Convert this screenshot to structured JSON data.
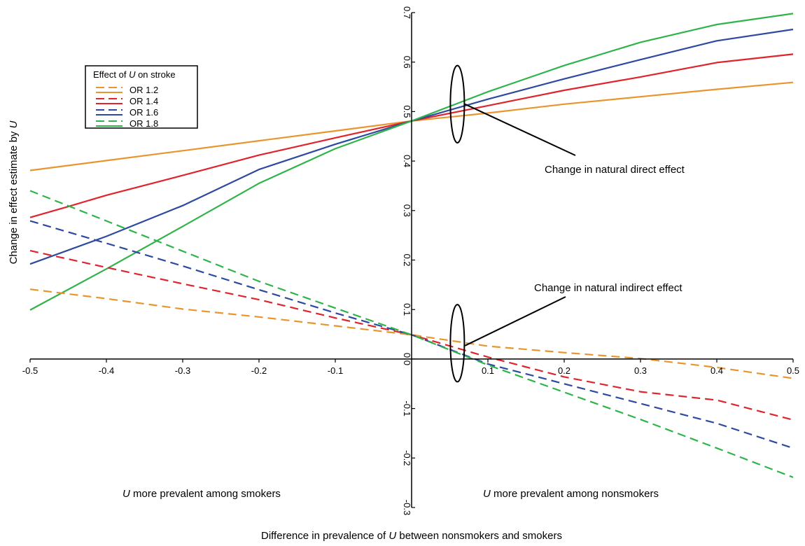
{
  "chart_data": {
    "type": "line",
    "xlabel": {
      "pre": "Difference in prevalence of ",
      "var": "U",
      "post": " between nonsmokers and smokers"
    },
    "ylabel": {
      "pre": "Change in effect estimate by ",
      "var": "U"
    },
    "xlim": [
      -0.5,
      0.5
    ],
    "ylim": [
      -0.3,
      0.7
    ],
    "x_ticks": [
      {
        "value": -0.5,
        "label": "-0.5"
      },
      {
        "value": -0.4,
        "label": "-0.4"
      },
      {
        "value": -0.3,
        "label": "-0.3"
      },
      {
        "value": -0.2,
        "label": "-0.2"
      },
      {
        "value": -0.1,
        "label": "-0.1"
      },
      {
        "value": 0.1,
        "label": "0.1"
      },
      {
        "value": 0.2,
        "label": "0.2"
      },
      {
        "value": 0.3,
        "label": "0.3"
      },
      {
        "value": 0.4,
        "label": "0.4"
      },
      {
        "value": 0.5,
        "label": "0.5"
      }
    ],
    "y_ticks": [
      {
        "value": -0.3,
        "label": "-0.3"
      },
      {
        "value": -0.2,
        "label": "-0.2"
      },
      {
        "value": -0.1,
        "label": "-0.1"
      },
      {
        "value": 0.0,
        "label": "0.0"
      },
      {
        "value": 0.1,
        "label": "0.1"
      },
      {
        "value": 0.2,
        "label": "0.2"
      },
      {
        "value": 0.3,
        "label": "0.3"
      },
      {
        "value": 0.4,
        "label": "0.4"
      },
      {
        "value": 0.5,
        "label": "0.5"
      },
      {
        "value": 0.6,
        "label": "0.6"
      },
      {
        "value": 0.7,
        "label": "0.7"
      }
    ],
    "grid": false,
    "legend": {
      "position": "top-left",
      "title_pre": "Effect of ",
      "title_var": "U",
      "title_post": " on stroke",
      "entries": [
        {
          "label": "OR 1.2",
          "color": "#e8952e"
        },
        {
          "label": "OR 1.4",
          "color": "#e0242c"
        },
        {
          "label": "OR 1.6",
          "color": "#2e4aa0"
        },
        {
          "label": "OR 1.8",
          "color": "#2fb44a"
        }
      ]
    },
    "series": [
      {
        "group": "natural-direct",
        "or": "OR 1.2",
        "color": "#e8952e",
        "style": "solid",
        "x": [
          -0.5,
          -0.4,
          -0.3,
          -0.2,
          -0.1,
          0,
          0.1,
          0.2,
          0.3,
          0.4,
          0.5
        ],
        "y": [
          0.381,
          0.401,
          0.421,
          0.441,
          0.461,
          0.481,
          0.497,
          0.515,
          0.53,
          0.545,
          0.559
        ]
      },
      {
        "group": "natural-direct",
        "or": "OR 1.4",
        "color": "#e0242c",
        "style": "solid",
        "x": [
          -0.5,
          -0.45,
          -0.4,
          -0.3,
          -0.2,
          -0.1,
          0,
          0.1,
          0.2,
          0.3,
          0.4,
          0.5
        ],
        "y": [
          0.286,
          0.308,
          0.331,
          0.371,
          0.412,
          0.447,
          0.481,
          0.512,
          0.543,
          0.57,
          0.599,
          0.616
        ]
      },
      {
        "group": "natural-direct",
        "or": "OR 1.6",
        "color": "#2e4aa0",
        "style": "solid",
        "x": [
          -0.5,
          -0.4,
          -0.3,
          -0.2,
          -0.1,
          0,
          0.1,
          0.2,
          0.3,
          0.4,
          0.5
        ],
        "y": [
          0.192,
          0.248,
          0.31,
          0.383,
          0.434,
          0.481,
          0.525,
          0.566,
          0.605,
          0.643,
          0.666
        ]
      },
      {
        "group": "natural-direct",
        "or": "OR 1.8",
        "color": "#2fb44a",
        "style": "solid",
        "x": [
          -0.5,
          -0.4,
          -0.3,
          -0.2,
          -0.1,
          0,
          0.1,
          0.2,
          0.3,
          0.4,
          0.5
        ],
        "y": [
          0.099,
          0.182,
          0.268,
          0.355,
          0.425,
          0.481,
          0.54,
          0.593,
          0.64,
          0.676,
          0.698
        ]
      },
      {
        "group": "natural-indirect",
        "or": "OR 1.2",
        "color": "#e8952e",
        "style": "dashed",
        "x": [
          -0.5,
          -0.4,
          -0.3,
          -0.2,
          -0.1,
          0,
          0.1,
          0.2,
          0.3,
          0.4,
          0.5
        ],
        "y": [
          0.141,
          0.122,
          0.101,
          0.085,
          0.067,
          0.049,
          0.026,
          0.013,
          0.001,
          -0.017,
          -0.039
        ]
      },
      {
        "group": "natural-indirect",
        "or": "OR 1.4",
        "color": "#e0242c",
        "style": "dashed",
        "x": [
          -0.5,
          -0.4,
          -0.3,
          -0.2,
          -0.1,
          0,
          0.1,
          0.2,
          0.3,
          0.4,
          0.5
        ],
        "y": [
          0.219,
          0.185,
          0.152,
          0.12,
          0.083,
          0.049,
          0.004,
          -0.036,
          -0.066,
          -0.083,
          -0.123
        ]
      },
      {
        "group": "natural-indirect",
        "or": "OR 1.6",
        "color": "#2e4aa0",
        "style": "dashed",
        "x": [
          -0.5,
          -0.4,
          -0.3,
          -0.2,
          -0.1,
          0,
          0.1,
          0.2,
          0.3,
          0.4,
          0.5
        ],
        "y": [
          0.279,
          0.234,
          0.188,
          0.14,
          0.093,
          0.049,
          -0.01,
          -0.05,
          -0.09,
          -0.13,
          -0.18
        ]
      },
      {
        "group": "natural-indirect",
        "or": "OR 1.8",
        "color": "#2fb44a",
        "style": "dashed",
        "x": [
          -0.5,
          -0.4,
          -0.3,
          -0.2,
          -0.1,
          0,
          0.1,
          0.2,
          0.3,
          0.4,
          0.5
        ],
        "y": [
          0.34,
          0.279,
          0.218,
          0.157,
          0.103,
          0.049,
          -0.012,
          -0.067,
          -0.122,
          -0.18,
          -0.239
        ]
      }
    ],
    "annotations": [
      {
        "name": "natural-direct",
        "text": "Change in natural direct effect",
        "ellipse": {
          "x": 0.06,
          "y": 0.515,
          "ry": 0.078
        },
        "pointer_from": [
          0.07,
          0.515
        ]
      },
      {
        "name": "natural-indirect",
        "text": "Change in natural indirect effect",
        "ellipse": {
          "x": 0.06,
          "y": 0.032,
          "ry": 0.078
        },
        "pointer_from": [
          0.07,
          0.027
        ]
      }
    ],
    "region_labels": [
      {
        "name": "smokers",
        "var": "U",
        "post": " more prevalent among smokers"
      },
      {
        "name": "nonsmokers",
        "var": "U",
        "post": " more prevalent among nonsmokers"
      }
    ]
  }
}
